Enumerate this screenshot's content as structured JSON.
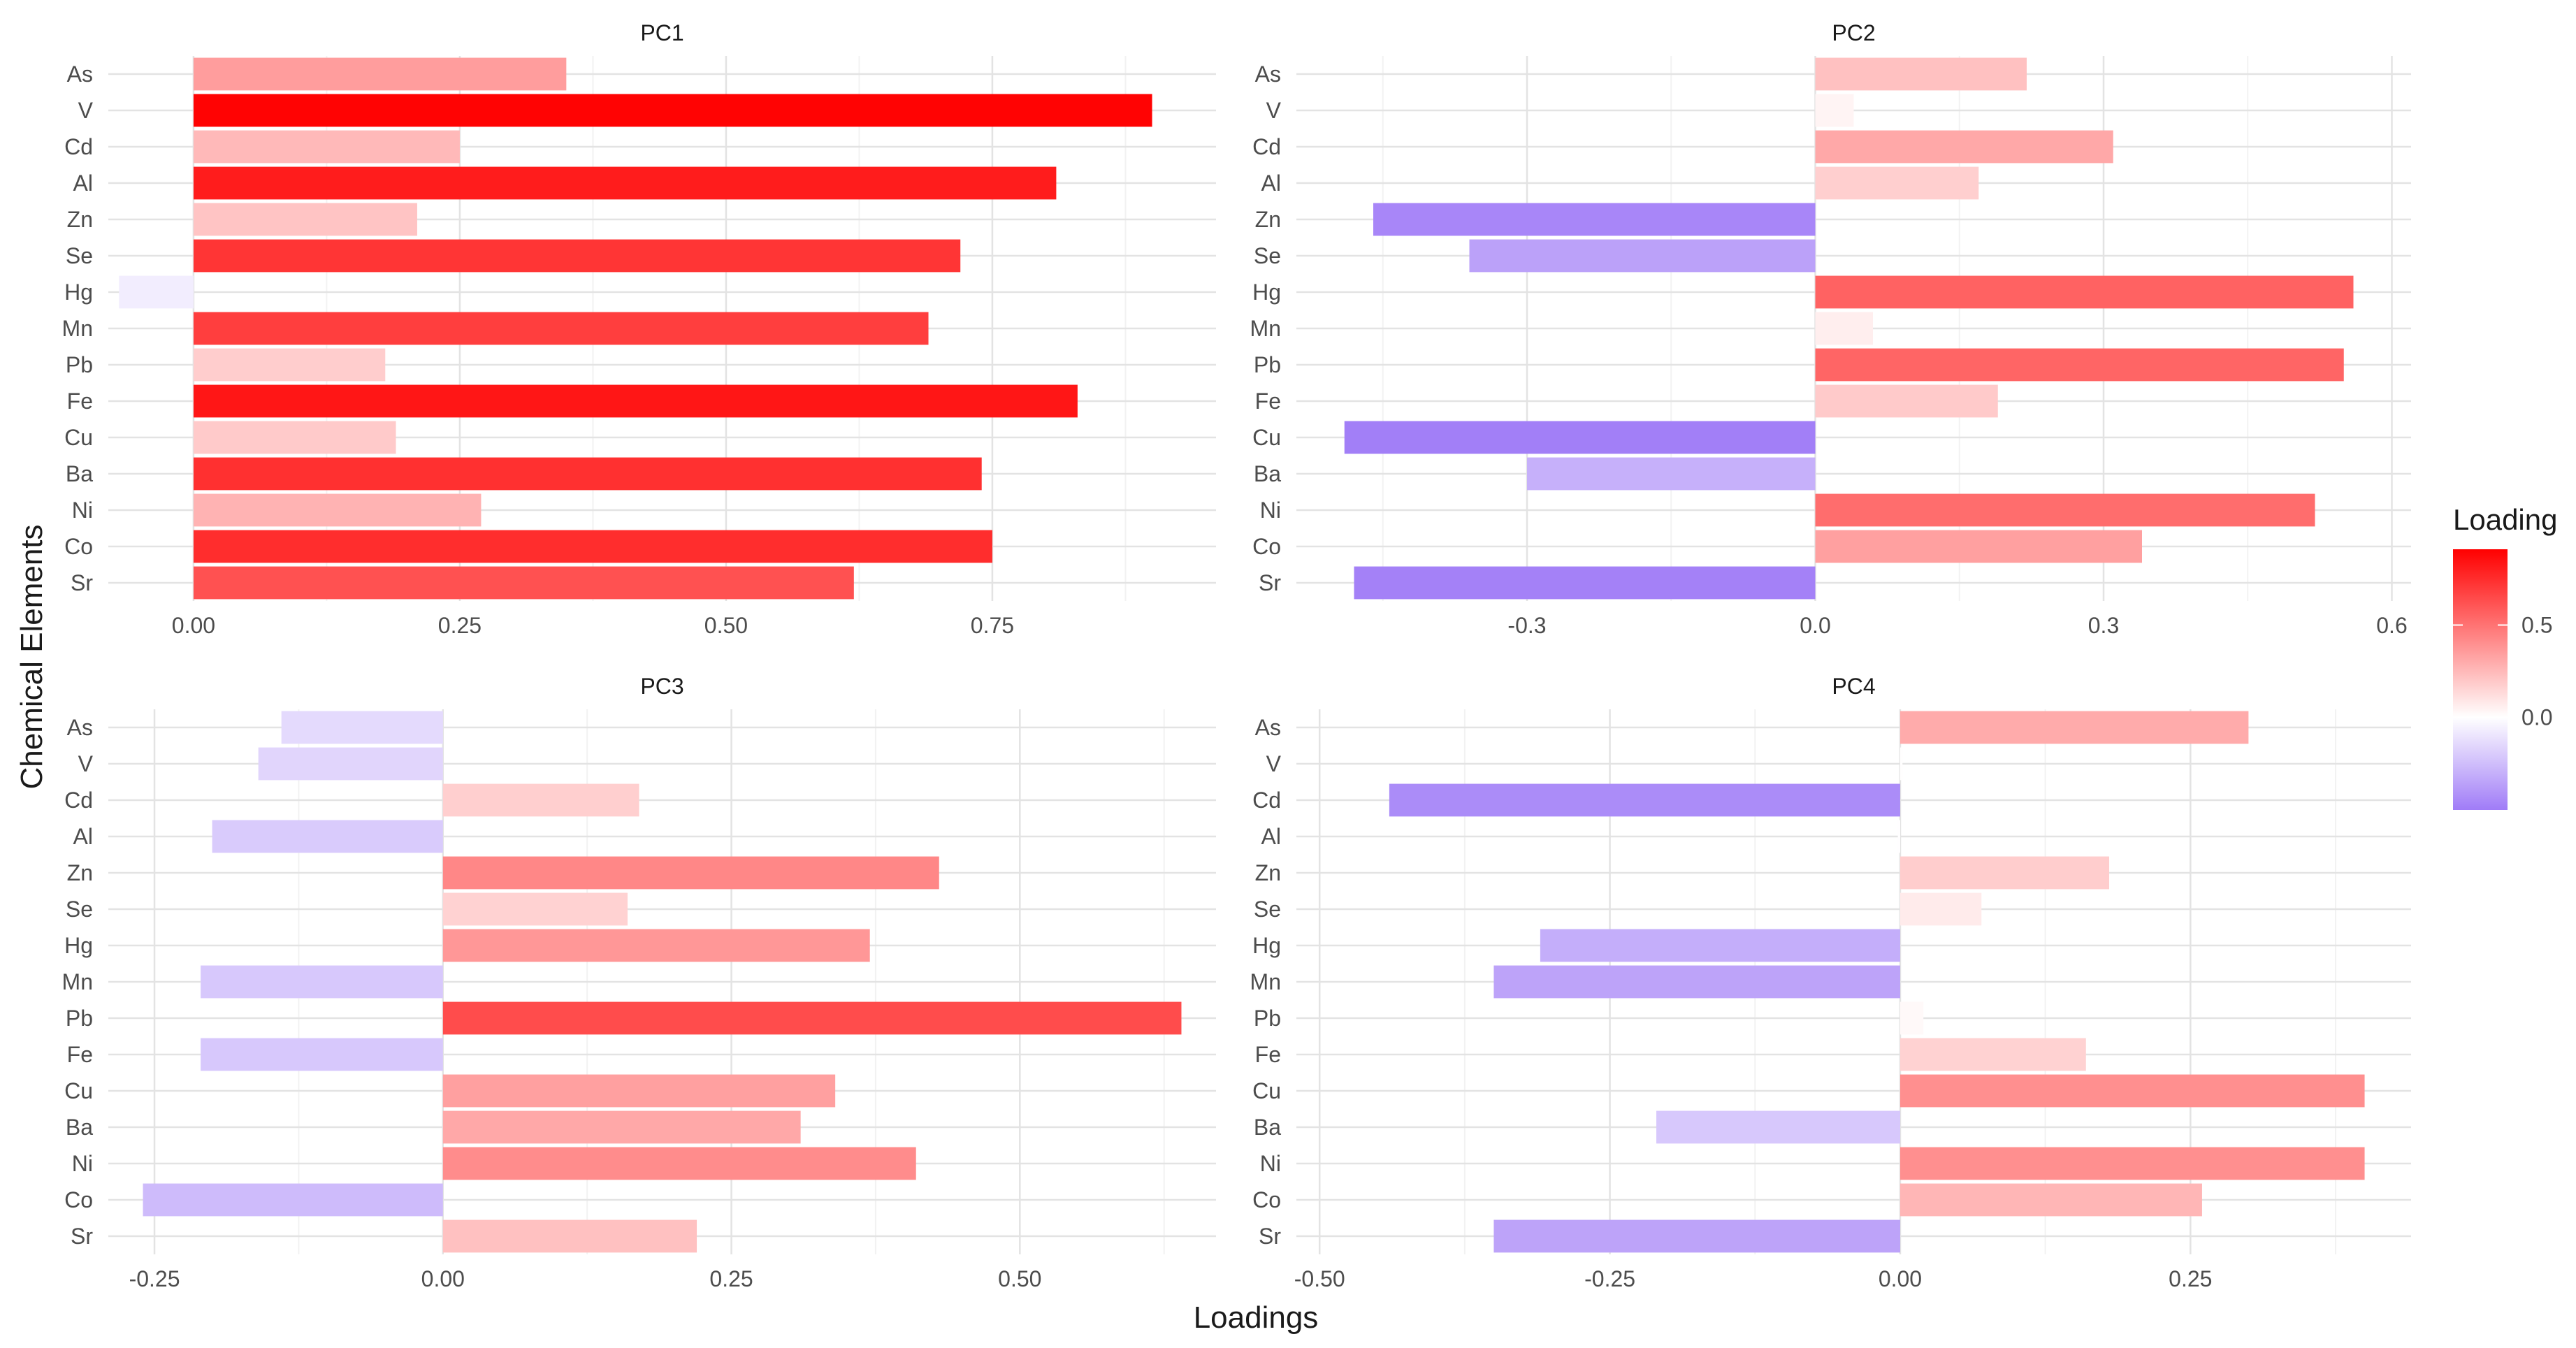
{
  "chart_data": {
    "type": "bar",
    "orientation": "horizontal",
    "xlabel": "Loadings",
    "ylabel": "Chemical Elements",
    "grid": true,
    "legend": {
      "title": "Loading",
      "placement": "right",
      "ticks": [
        {
          "value": 0.5,
          "label": "0.5"
        },
        {
          "value": 0.0,
          "label": "0.0"
        }
      ],
      "low_color": "#a07cf7",
      "mid_color": "#ffffff",
      "high_color": "#ff0000",
      "range": [
        -0.5,
        0.91
      ]
    },
    "categories": [
      "As",
      "V",
      "Cd",
      "Al",
      "Zn",
      "Se",
      "Hg",
      "Mn",
      "Pb",
      "Fe",
      "Cu",
      "Ba",
      "Ni",
      "Co",
      "Sr"
    ],
    "panels": [
      {
        "title": "PC1",
        "xlim": [
          -0.08,
          0.96
        ],
        "xticks": [
          {
            "value": 0,
            "label": "0.00"
          },
          {
            "value": 0.25,
            "label": "0.25"
          },
          {
            "value": 0.5,
            "label": "0.50"
          },
          {
            "value": 0.75,
            "label": "0.75"
          }
        ],
        "values": [
          0.35,
          0.9,
          0.25,
          0.81,
          0.21,
          0.72,
          -0.07,
          0.69,
          0.18,
          0.83,
          0.19,
          0.74,
          0.27,
          0.75,
          0.62
        ]
      },
      {
        "title": "PC2",
        "xlim": [
          -0.54,
          0.62
        ],
        "xticks": [
          {
            "value": -0.3,
            "label": "-0.3"
          },
          {
            "value": 0,
            "label": "0.0"
          },
          {
            "value": 0.3,
            "label": "0.3"
          },
          {
            "value": 0.6,
            "label": "0.6"
          }
        ],
        "values": [
          0.22,
          0.04,
          0.31,
          0.17,
          -0.46,
          -0.36,
          0.56,
          0.06,
          0.55,
          0.19,
          -0.49,
          -0.3,
          0.52,
          0.34,
          -0.48
        ]
      },
      {
        "title": "PC3",
        "xlim": [
          -0.29,
          0.67
        ],
        "xticks": [
          {
            "value": -0.25,
            "label": "-0.25"
          },
          {
            "value": 0,
            "label": "0.00"
          },
          {
            "value": 0.25,
            "label": "0.25"
          },
          {
            "value": 0.5,
            "label": "0.50"
          }
        ],
        "values": [
          -0.14,
          -0.16,
          0.17,
          -0.2,
          0.43,
          0.16,
          0.37,
          -0.21,
          0.64,
          -0.21,
          0.34,
          0.31,
          0.41,
          -0.26,
          0.22
        ]
      },
      {
        "title": "PC4",
        "xlim": [
          -0.52,
          0.44
        ],
        "xticks": [
          {
            "value": -0.5,
            "label": "-0.50"
          },
          {
            "value": -0.25,
            "label": "-0.25"
          },
          {
            "value": 0,
            "label": "0.00"
          },
          {
            "value": 0.25,
            "label": "0.25"
          }
        ],
        "values": [
          0.3,
          0.002,
          -0.44,
          -0.002,
          0.18,
          0.07,
          -0.31,
          -0.35,
          0.02,
          0.16,
          0.4,
          -0.21,
          0.4,
          0.26,
          -0.35
        ]
      }
    ]
  }
}
